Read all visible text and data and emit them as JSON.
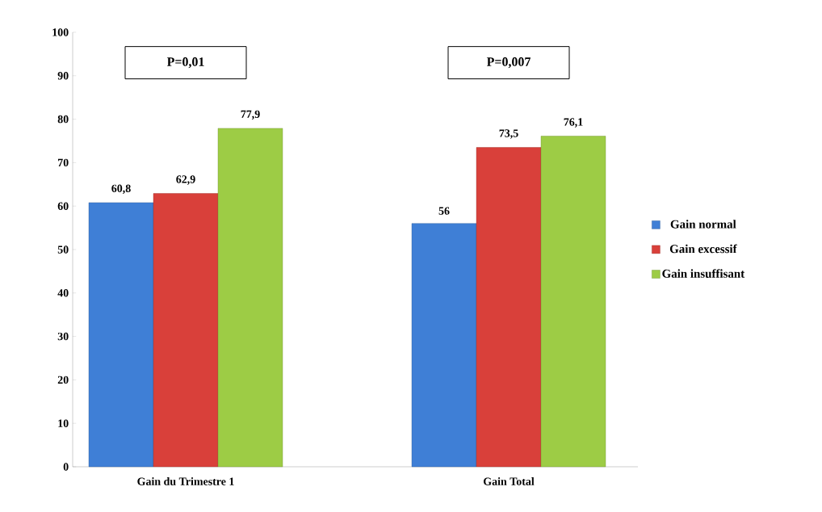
{
  "chart_data": {
    "type": "bar",
    "categories": [
      "Gain du Trimestre 1",
      "Gain Total"
    ],
    "series": [
      {
        "name": "Gain normal",
        "color": "#3f7fd6",
        "values": [
          60.8,
          56
        ],
        "value_labels": [
          "60,8",
          "56"
        ]
      },
      {
        "name": "Gain excessif",
        "color": "#d9403a",
        "values": [
          62.9,
          73.5
        ],
        "value_labels": [
          "62,9",
          "73,5"
        ]
      },
      {
        "name": "Gain insuffisant",
        "color": "#9dcc45",
        "values": [
          77.9,
          76.1
        ],
        "value_labels": [
          "77,9",
          "76,1"
        ]
      }
    ],
    "annotations": [
      "P=0,01",
      "P=0,007"
    ],
    "ylim": [
      0,
      100
    ],
    "yticks": [
      0,
      10,
      20,
      30,
      40,
      50,
      60,
      70,
      80,
      90,
      100
    ],
    "grid": false,
    "legend": "right"
  }
}
